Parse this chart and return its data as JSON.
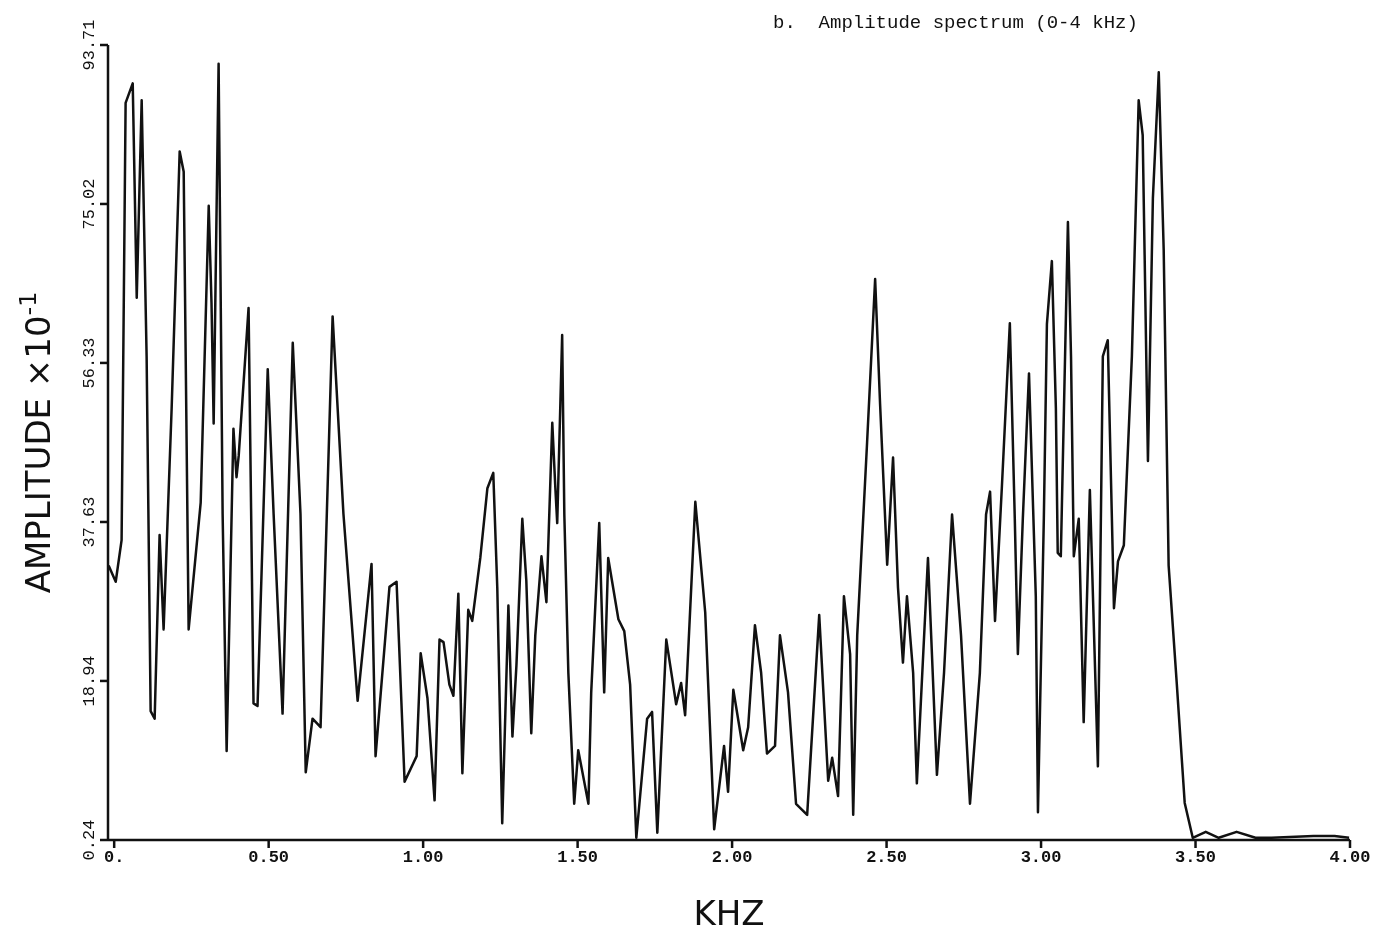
{
  "chart_data": {
    "type": "line",
    "title": "b.  Amplitude spectrum (0-4 kHz)",
    "xlabel": "KHZ",
    "ylabel": "AMPLITUDE ×10$^{-1}$",
    "xlim": [
      -0.02,
      4.0
    ],
    "ylim": [
      0.24,
      93.71
    ],
    "xticks": [
      {
        "value": 0,
        "label": "0."
      },
      {
        "value": 0.5,
        "label": "0.50"
      },
      {
        "value": 1,
        "label": "1.00"
      },
      {
        "value": 1.5,
        "label": "1.50"
      },
      {
        "value": 2,
        "label": "2.00"
      },
      {
        "value": 2.5,
        "label": "2.50"
      },
      {
        "value": 3,
        "label": "3.00"
      },
      {
        "value": 3.5,
        "label": "3.50"
      },
      {
        "value": 4,
        "label": "4.00"
      }
    ],
    "yticks": [
      0.24,
      18.94,
      37.63,
      56.33,
      75.02,
      93.71
    ],
    "grid": false,
    "marker": "none",
    "line_style": "solid",
    "series": [
      {
        "color": "#111111",
        "x": [
          -0.018,
          0.005,
          0.024,
          0.037,
          0.06,
          0.073,
          0.089,
          0.105,
          0.118,
          0.131,
          0.147,
          0.16,
          0.186,
          0.212,
          0.225,
          0.241,
          0.28,
          0.306,
          0.315,
          0.322,
          0.328,
          0.338,
          0.351,
          0.364,
          0.386,
          0.396,
          0.403,
          0.435,
          0.451,
          0.464,
          0.497,
          0.516,
          0.545,
          0.578,
          0.603,
          0.62,
          0.642,
          0.668,
          0.707,
          0.742,
          0.788,
          0.833,
          0.846,
          0.891,
          0.914,
          0.94,
          0.979,
          0.992,
          1.014,
          1.037,
          1.053,
          1.066,
          1.085,
          1.098,
          1.114,
          1.127,
          1.146,
          1.159,
          1.185,
          1.208,
          1.227,
          1.24,
          1.256,
          1.276,
          1.289,
          1.302,
          1.321,
          1.334,
          1.35,
          1.363,
          1.383,
          1.399,
          1.418,
          1.428,
          1.434,
          1.45,
          1.457,
          1.47,
          1.489,
          1.502,
          1.535,
          1.544,
          1.57,
          1.586,
          1.599,
          1.632,
          1.651,
          1.67,
          1.69,
          1.725,
          1.741,
          1.758,
          1.787,
          1.819,
          1.835,
          1.848,
          1.881,
          1.913,
          1.942,
          1.974,
          1.987,
          2.004,
          2.036,
          2.052,
          2.074,
          2.094,
          2.113,
          2.139,
          2.155,
          2.181,
          2.207,
          2.243,
          2.282,
          2.311,
          2.324,
          2.343,
          2.362,
          2.382,
          2.392,
          2.405,
          2.437,
          2.463,
          2.479,
          2.502,
          2.521,
          2.537,
          2.553,
          2.566,
          2.586,
          2.598,
          2.634,
          2.663,
          2.686,
          2.712,
          2.741,
          2.77,
          2.802,
          2.822,
          2.835,
          2.851,
          2.873,
          2.899,
          2.915,
          2.925,
          2.941,
          2.961,
          2.983,
          2.99,
          3.009,
          3.019,
          3.035,
          3.048,
          3.054,
          3.064,
          3.087,
          3.097,
          3.106,
          3.122,
          3.138,
          3.158,
          3.184,
          3.2,
          3.216,
          3.236,
          3.249,
          3.268,
          3.294,
          3.316,
          3.329,
          3.346,
          3.362,
          3.381,
          3.397,
          3.413,
          3.439,
          3.465,
          3.491,
          3.533,
          3.575,
          3.633,
          3.694,
          3.746,
          3.882,
          3.95,
          3.997
        ],
        "values": [
          32.5,
          30.6,
          35.5,
          86.9,
          89.2,
          64.0,
          87.2,
          57.1,
          15.4,
          14.5,
          36.1,
          25.0,
          51.0,
          81.2,
          78.8,
          25.0,
          39.9,
          74.8,
          63.4,
          49.2,
          65.3,
          91.5,
          38.6,
          10.7,
          48.6,
          42.9,
          45.4,
          62.8,
          16.3,
          16.0,
          55.6,
          38.6,
          15.1,
          58.7,
          38.6,
          8.2,
          14.5,
          13.5,
          61.8,
          38.6,
          16.6,
          32.7,
          10.1,
          30.0,
          30.6,
          7.1,
          10.1,
          22.2,
          16.9,
          4.9,
          23.8,
          23.5,
          18.5,
          17.2,
          29.2,
          8.1,
          27.3,
          26.0,
          33.4,
          41.6,
          43.4,
          29.9,
          2.2,
          27.8,
          12.4,
          20.8,
          38.0,
          30.7,
          12.8,
          24.3,
          33.6,
          28.2,
          49.3,
          41.6,
          37.5,
          59.6,
          38.5,
          19.9,
          4.5,
          10.8,
          4.5,
          17.6,
          37.5,
          17.6,
          33.4,
          26.2,
          24.8,
          18.5,
          0.5,
          14.5,
          15.3,
          1.1,
          23.8,
          16.2,
          18.7,
          14.9,
          40.0,
          27.0,
          1.5,
          11.3,
          5.9,
          17.9,
          10.8,
          13.5,
          25.5,
          19.9,
          10.4,
          11.3,
          24.3,
          17.6,
          4.5,
          3.2,
          26.7,
          7.2,
          9.9,
          5.4,
          28.9,
          22.1,
          3.2,
          24.3,
          47.0,
          66.2,
          51.5,
          32.6,
          45.2,
          29.9,
          21.1,
          28.9,
          19.9,
          6.9,
          33.4,
          7.9,
          19.9,
          38.5,
          24.3,
          4.5,
          19.9,
          38.5,
          41.2,
          26.0,
          41.6,
          61.0,
          38.0,
          22.1,
          38.0,
          55.1,
          28.9,
          3.5,
          38.0,
          60.9,
          68.3,
          51.0,
          34.0,
          33.6,
          72.9,
          57.1,
          33.6,
          38.0,
          14.1,
          41.4,
          8.9,
          57.1,
          59.0,
          27.5,
          33.0,
          34.9,
          57.1,
          87.2,
          83.1,
          44.8,
          75.7,
          90.5,
          69.6,
          32.5,
          18.8,
          4.6,
          0.5,
          1.2,
          0.5,
          1.2,
          0.5,
          0.5,
          0.7,
          0.7,
          0.5
        ]
      }
    ]
  }
}
